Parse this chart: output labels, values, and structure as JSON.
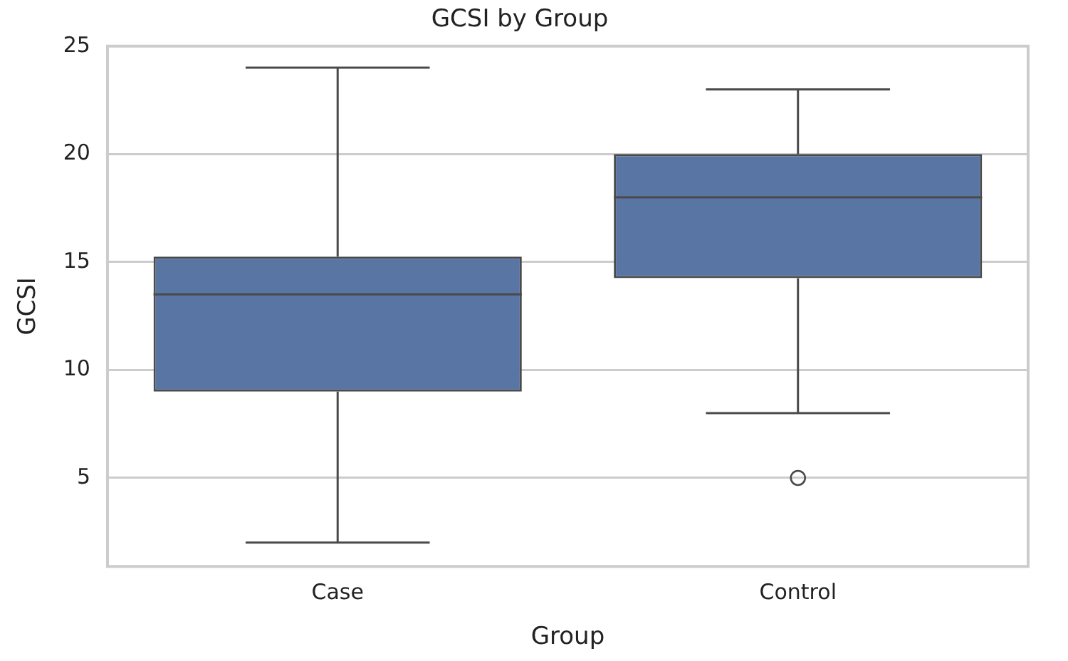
{
  "chart_data": {
    "type": "box",
    "title": "GCSI by Group",
    "xlabel": "Group",
    "ylabel": "GCSI",
    "categories": [
      "Case",
      "Control"
    ],
    "color": "#5975a4",
    "boxes": [
      {
        "low": 2,
        "q1": 9,
        "median": 13.5,
        "q3": 15.25,
        "high": 24
      },
      {
        "low": 8,
        "q1": 14.25,
        "median": 18,
        "q3": 20,
        "high": 23,
        "outliers": [
          5
        ]
      }
    ],
    "ylim": [
      0.9,
      25
    ],
    "yticks": [
      5,
      10,
      15,
      20,
      25
    ],
    "grid": "y"
  }
}
